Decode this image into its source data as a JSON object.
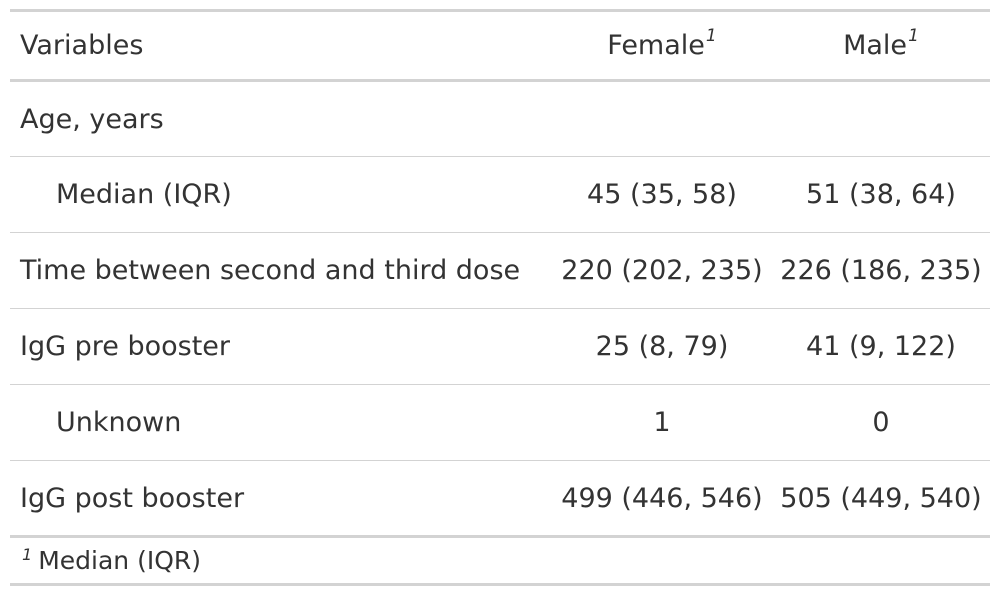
{
  "table": {
    "headers": {
      "variables": "Variables",
      "female": "Female",
      "male": "Male",
      "footnote_marker": "1"
    },
    "rows": [
      {
        "label": "Age, years",
        "female": "",
        "male": ""
      },
      {
        "label": "Median (IQR)",
        "female": "45 (35, 58)",
        "male": "51 (38, 64)"
      },
      {
        "label": "Time between second and third dose",
        "female": "220 (202, 235)",
        "male": "226 (186, 235)"
      },
      {
        "label": "IgG pre booster",
        "female": "25 (8, 79)",
        "male": "41 (9, 122)"
      },
      {
        "label": "Unknown",
        "female": "1",
        "male": "0"
      },
      {
        "label": "IgG post booster",
        "female": "499 (446, 546)",
        "male": "505 (449, 540)"
      }
    ],
    "footnote": {
      "marker": "1",
      "text": "Median (IQR)"
    }
  }
}
